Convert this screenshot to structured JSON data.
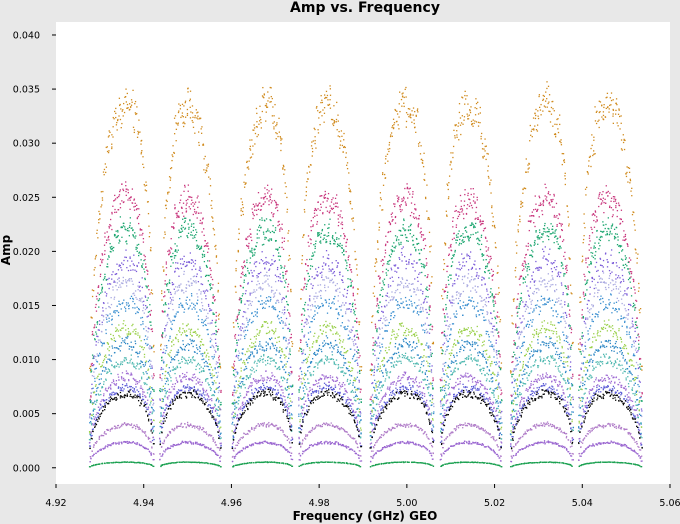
{
  "chart_data": {
    "type": "scatter",
    "title": "Amp vs. Frequency",
    "xlabel": "Frequency (GHz) GEO",
    "ylabel": "Amp",
    "xlim": [
      4.92,
      5.06
    ],
    "ylim": [
      -0.0015,
      0.0412
    ],
    "xticks": [
      "4.92",
      "4.94",
      "4.96",
      "4.98",
      "5.00",
      "5.02",
      "5.04",
      "5.06"
    ],
    "yticks": [
      "0.000",
      "0.005",
      "0.010",
      "0.015",
      "0.020",
      "0.025",
      "0.030",
      "0.035",
      "0.040"
    ],
    "grid": false,
    "legend": "none",
    "spw_windows": [
      {
        "start": 4.9275,
        "end": 4.9422
      },
      {
        "start": 4.9435,
        "end": 4.9575
      },
      {
        "start": 4.96,
        "end": 4.9738
      },
      {
        "start": 4.9752,
        "end": 4.9895
      },
      {
        "start": 4.9915,
        "end": 5.006
      },
      {
        "start": 5.0075,
        "end": 5.0215
      },
      {
        "start": 5.0235,
        "end": 5.0378
      },
      {
        "start": 5.039,
        "end": 5.0535
      }
    ],
    "series": [
      {
        "color": "#d08a1c",
        "peak": 0.035
      },
      {
        "color": "#c8357c",
        "peak": 0.026
      },
      {
        "color": "#1aa56e",
        "peak": 0.023
      },
      {
        "color": "#7a5ad8",
        "peak": 0.02
      },
      {
        "color": "#a9a9e0",
        "peak": 0.018
      },
      {
        "color": "#3a8fd0",
        "peak": 0.016
      },
      {
        "color": "#9ad04a",
        "peak": 0.0135
      },
      {
        "color": "#2b86c4",
        "peak": 0.012
      },
      {
        "color": "#4fb8b0",
        "peak": 0.0105
      },
      {
        "color": "#9f6bd3",
        "peak": 0.0088
      },
      {
        "color": "#5a5ad6",
        "peak": 0.0078
      },
      {
        "color": "#000000",
        "peak": 0.0072
      },
      {
        "color": "#b07cc8",
        "peak": 0.0042
      },
      {
        "color": "#9a66d0",
        "peak": 0.0025
      },
      {
        "color": "#1aa050",
        "peak": 0.0006
      }
    ]
  }
}
